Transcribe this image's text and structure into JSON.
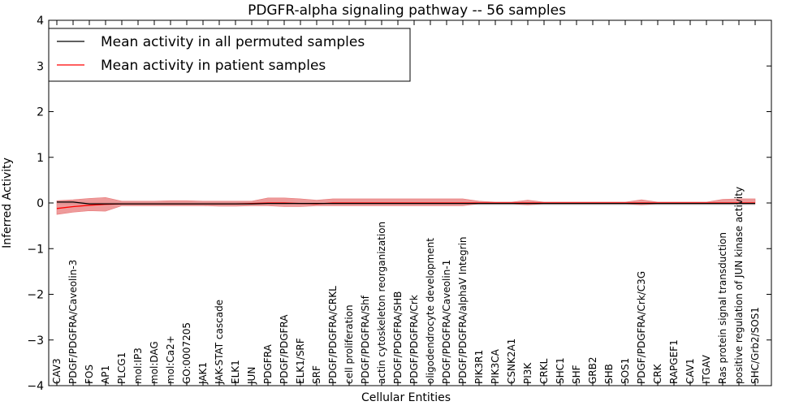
{
  "chart_data": {
    "type": "line",
    "title": "PDGFR-alpha signaling pathway -- 56 samples",
    "xlabel": "Cellular Entities",
    "ylabel": "Inferred Activity",
    "ylim": [
      -4,
      4
    ],
    "yticks": [
      "−4",
      "−3",
      "−2",
      "−1",
      "0",
      "1",
      "2",
      "3",
      "4"
    ],
    "grid": false,
    "legend_position": "top-left",
    "categories": [
      "CAV3",
      "PDGF/PDGFRA/Caveolin-3",
      "FOS",
      "AP1",
      "PLCG1",
      "mol:IP3",
      "mol:DAG",
      "mol:Ca2+",
      "GO:0007205",
      "JAK1",
      "JAK-STAT cascade",
      "ELK1",
      "JUN",
      "PDGFRA",
      "PDGF/PDGFRA",
      "ELK1/SRF",
      "SRF",
      "PDGF/PDGFRA/CRKL",
      "cell proliferation",
      "PDGF/PDGFRA/Shf",
      "actin cytoskeleton reorganization",
      "PDGF/PDGFRA/SHB",
      "PDGF/PDGFRA/Crk",
      "oligodendrocyte development",
      "PDGF/PDGFRA/Caveolin-1",
      "PDGF/PDGFRA/alphaV Integrin",
      "PIK3R1",
      "PIK3CA",
      "CSNK2A1",
      "PI3K",
      "CRKL",
      "SHC1",
      "SHF",
      "GRB2",
      "SHB",
      "SOS1",
      "PDGF/PDGFRA/Crk/C3G",
      "CRK",
      "RAPGEF1",
      "CAV1",
      "ITGAV",
      "Ras protein signal transduction",
      "positive regulation of JUN kinase activity",
      "SHC/Grb2/SOS1"
    ],
    "series": [
      {
        "name": "Mean activity in all permuted samples",
        "color": "#000000",
        "values": [
          0.02,
          0.02,
          -0.02,
          -0.02,
          -0.02,
          -0.02,
          -0.02,
          -0.02,
          -0.02,
          -0.02,
          -0.02,
          -0.02,
          -0.02,
          -0.01,
          -0.01,
          -0.01,
          -0.01,
          -0.01,
          -0.01,
          -0.01,
          -0.01,
          -0.01,
          -0.01,
          -0.01,
          -0.01,
          -0.01,
          -0.01,
          -0.01,
          -0.01,
          -0.01,
          -0.01,
          -0.01,
          -0.01,
          -0.01,
          -0.01,
          -0.01,
          -0.01,
          -0.01,
          -0.01,
          -0.01,
          -0.01,
          -0.01,
          -0.01,
          -0.01
        ],
        "band_low": [
          -0.03,
          -0.03,
          -0.04,
          -0.04,
          -0.04,
          -0.04,
          -0.04,
          -0.04,
          -0.04,
          -0.04,
          -0.04,
          -0.04,
          -0.04,
          -0.03,
          -0.03,
          -0.03,
          -0.03,
          -0.03,
          -0.03,
          -0.03,
          -0.03,
          -0.03,
          -0.03,
          -0.03,
          -0.03,
          -0.03,
          -0.05,
          -0.05,
          -0.05,
          -0.05,
          -0.05,
          -0.05,
          -0.05,
          -0.05,
          -0.05,
          -0.05,
          -0.05,
          -0.05,
          -0.05,
          -0.05,
          -0.05,
          -0.05,
          -0.05,
          -0.05
        ],
        "band_high": [
          0.05,
          0.05,
          0.02,
          0.02,
          0.02,
          0.02,
          0.02,
          0.02,
          0.02,
          0.02,
          0.02,
          0.02,
          0.02,
          0.02,
          0.02,
          0.02,
          0.02,
          0.02,
          0.02,
          0.02,
          0.02,
          0.02,
          0.02,
          0.02,
          0.02,
          0.02,
          0.02,
          0.02,
          0.02,
          0.02,
          0.02,
          0.02,
          0.02,
          0.02,
          0.02,
          0.02,
          0.02,
          0.02,
          0.02,
          0.02,
          0.02,
          0.02,
          0.02,
          0.02
        ]
      },
      {
        "name": "Mean activity in patient samples",
        "color": "#ff0000",
        "band_color": "#e87a7a",
        "values": [
          -0.12,
          -0.08,
          -0.05,
          -0.03,
          -0.02,
          -0.02,
          -0.02,
          -0.02,
          -0.02,
          -0.02,
          -0.02,
          -0.02,
          -0.01,
          0.0,
          0.0,
          -0.01,
          -0.02,
          0.0,
          0.0,
          0.0,
          0.0,
          0.0,
          0.0,
          0.0,
          0.0,
          0.0,
          0.0,
          0.0,
          0.0,
          0.0,
          0.0,
          0.0,
          0.0,
          0.0,
          0.0,
          0.0,
          0.0,
          0.0,
          0.0,
          0.0,
          0.0,
          0.0,
          0.0,
          0.0
        ],
        "band_low": [
          -0.25,
          -0.2,
          -0.17,
          -0.18,
          -0.06,
          -0.06,
          -0.06,
          -0.06,
          -0.06,
          -0.06,
          -0.07,
          -0.07,
          -0.06,
          -0.06,
          -0.08,
          -0.08,
          -0.06,
          -0.06,
          -0.06,
          -0.06,
          -0.06,
          -0.06,
          -0.06,
          -0.06,
          -0.06,
          -0.06,
          -0.02,
          -0.02,
          -0.02,
          -0.04,
          -0.02,
          -0.02,
          -0.02,
          -0.02,
          -0.02,
          -0.02,
          -0.04,
          -0.02,
          -0.02,
          -0.02,
          -0.02,
          -0.02,
          -0.02,
          -0.02
        ],
        "band_high": [
          0.05,
          0.07,
          0.1,
          0.12,
          0.04,
          0.04,
          0.04,
          0.05,
          0.05,
          0.04,
          0.04,
          0.04,
          0.04,
          0.11,
          0.11,
          0.09,
          0.06,
          0.09,
          0.09,
          0.09,
          0.09,
          0.09,
          0.09,
          0.09,
          0.09,
          0.09,
          0.04,
          0.02,
          0.02,
          0.06,
          0.02,
          0.02,
          0.02,
          0.02,
          0.02,
          0.02,
          0.07,
          0.02,
          0.02,
          0.02,
          0.02,
          0.08,
          0.09,
          0.09
        ]
      }
    ]
  }
}
